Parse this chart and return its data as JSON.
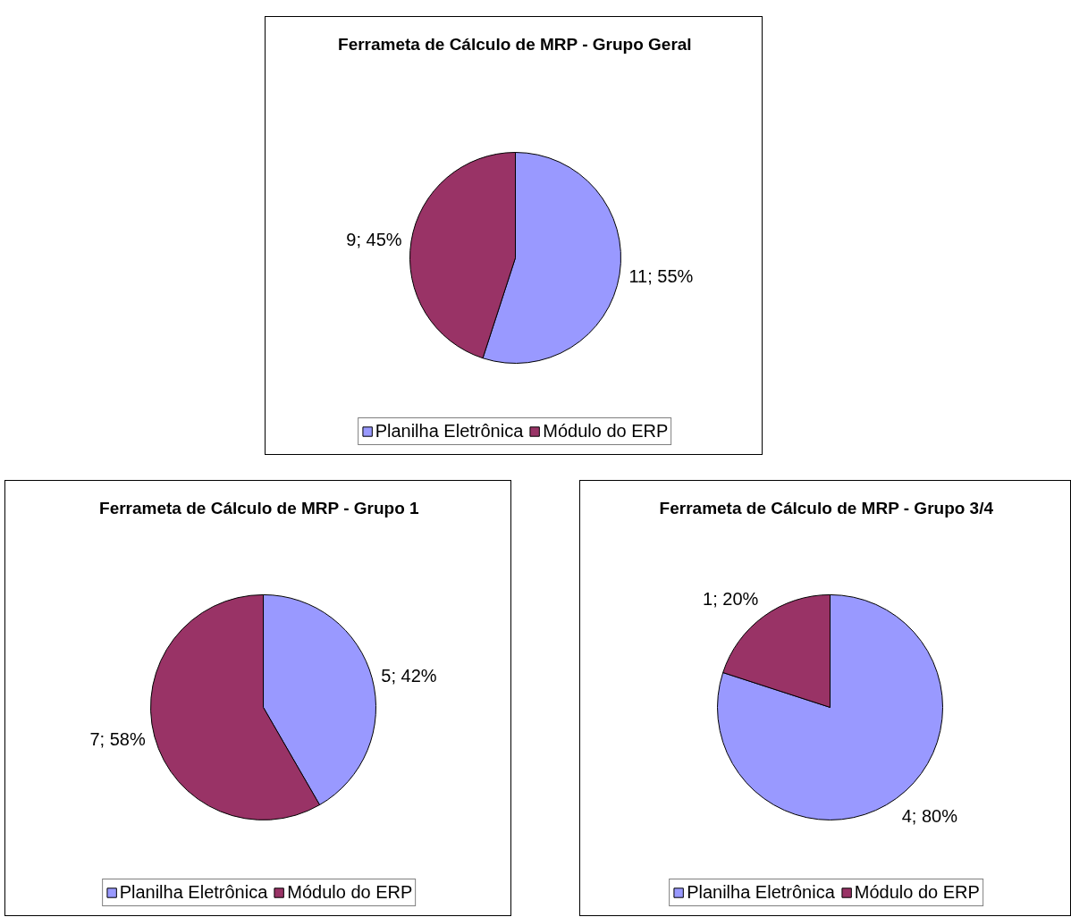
{
  "chart_data": [
    {
      "type": "pie",
      "title": "Ferrameta de Cálculo de MRP - Grupo Geral",
      "categories": [
        "Planilha Eletrônica",
        "Módulo do ERP"
      ],
      "values": [
        11,
        9
      ],
      "colors": [
        "#9999ff",
        "#993366"
      ],
      "value_labels": [
        "11; 55%",
        "9; 45%"
      ],
      "legend": "bottom"
    },
    {
      "type": "pie",
      "title": "Ferrameta de Cálculo de MRP - Grupo 1",
      "categories": [
        "Planilha Eletrônica",
        "Módulo do ERP"
      ],
      "values": [
        5,
        7
      ],
      "colors": [
        "#9999ff",
        "#993366"
      ],
      "value_labels": [
        "5; 42%",
        "7; 58%"
      ],
      "legend": "bottom"
    },
    {
      "type": "pie",
      "title": "Ferrameta de Cálculo de MRP - Grupo 3/4",
      "categories": [
        "Planilha Eletrônica",
        "Módulo do ERP"
      ],
      "values": [
        4,
        1
      ],
      "colors": [
        "#9999ff",
        "#993366"
      ],
      "value_labels": [
        "4; 80%",
        "1; 20%"
      ],
      "legend": "bottom"
    }
  ]
}
